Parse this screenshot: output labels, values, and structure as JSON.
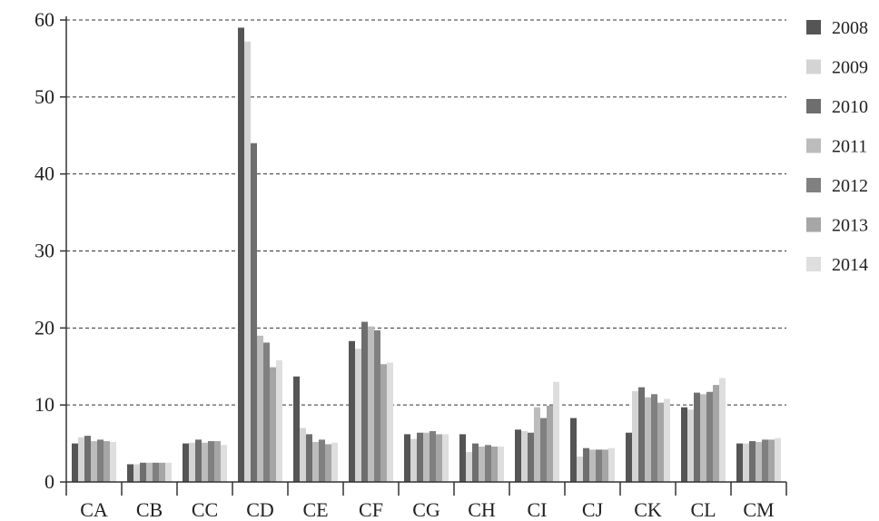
{
  "chart_data": {
    "type": "bar",
    "title": "",
    "xlabel": "",
    "ylabel": "",
    "ylim": [
      0,
      60
    ],
    "yticks": [
      0,
      10,
      20,
      30,
      40,
      50,
      60
    ],
    "grid": "horizontal-dashed",
    "legend_position": "right",
    "categories": [
      "CA",
      "CB",
      "CC",
      "CD",
      "CE",
      "CF",
      "CG",
      "CH",
      "CI",
      "CJ",
      "CK",
      "CL",
      "CM"
    ],
    "series": [
      {
        "name": "2008",
        "color": "#555555",
        "values": [
          5.0,
          2.3,
          5.0,
          59.0,
          13.7,
          18.3,
          6.2,
          6.2,
          6.8,
          8.3,
          6.4,
          9.7,
          5.0
        ]
      },
      {
        "name": "2009",
        "color": "#d4d4d4",
        "values": [
          5.8,
          2.3,
          5.1,
          57.2,
          7.0,
          17.3,
          5.6,
          3.9,
          6.6,
          3.3,
          11.8,
          9.4,
          5.0
        ]
      },
      {
        "name": "2010",
        "color": "#6e6e6e",
        "values": [
          6.0,
          2.5,
          5.5,
          44.0,
          6.2,
          20.8,
          6.4,
          5.0,
          6.4,
          4.4,
          12.3,
          11.6,
          5.3
        ]
      },
      {
        "name": "2011",
        "color": "#bcbcbc",
        "values": [
          5.3,
          2.5,
          5.1,
          19.0,
          5.2,
          20.2,
          6.4,
          4.6,
          9.7,
          4.2,
          11.0,
          11.4,
          5.2
        ]
      },
      {
        "name": "2012",
        "color": "#808080",
        "values": [
          5.5,
          2.5,
          5.3,
          18.1,
          5.5,
          19.7,
          6.6,
          4.8,
          8.3,
          4.2,
          11.4,
          11.7,
          5.5
        ]
      },
      {
        "name": "2013",
        "color": "#a6a6a6",
        "values": [
          5.3,
          2.5,
          5.3,
          14.9,
          4.9,
          15.3,
          6.2,
          4.6,
          9.9,
          4.2,
          10.3,
          12.6,
          5.5
        ]
      },
      {
        "name": "2014",
        "color": "#dedede",
        "values": [
          5.2,
          2.5,
          4.8,
          15.8,
          5.1,
          15.5,
          6.2,
          4.6,
          13.0,
          4.4,
          10.8,
          13.5,
          5.7
        ]
      }
    ]
  }
}
